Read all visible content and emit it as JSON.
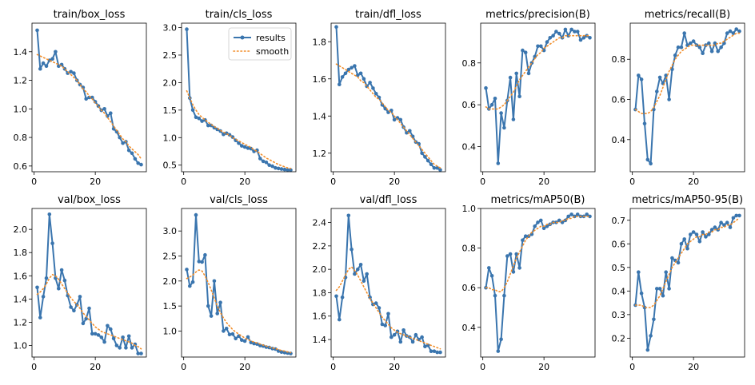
{
  "figure": {
    "colors": {
      "results": "#3a75ae",
      "smooth": "#f28e2b",
      "axis": "#000000",
      "background": "#ffffff"
    },
    "legend": {
      "results": "results",
      "smooth": "smooth",
      "placement": "upper right of train/cls_loss"
    }
  },
  "chart_data": [
    {
      "type": "line",
      "title": "train/box_loss",
      "xlim": [
        -0.7,
        36.7
      ],
      "ylim": [
        0.56,
        1.6
      ],
      "xticks": [
        0,
        20
      ],
      "yticks": [
        0.6,
        0.8,
        1.0,
        1.2,
        1.4
      ],
      "ytick_labels": [
        "0.6",
        "0.8",
        "1.0",
        "1.2",
        "1.4"
      ],
      "legend": false,
      "series": [
        {
          "role": "results",
          "values": [
            1.55,
            1.28,
            1.32,
            1.3,
            1.34,
            1.35,
            1.4,
            1.3,
            1.31,
            1.28,
            1.25,
            1.26,
            1.25,
            1.2,
            1.17,
            1.15,
            1.07,
            1.08,
            1.08,
            1.05,
            1.02,
            0.99,
            1.0,
            0.95,
            0.97,
            0.86,
            0.84,
            0.8,
            0.76,
            0.77,
            0.71,
            0.69,
            0.65,
            0.62,
            0.61
          ]
        },
        {
          "role": "smooth",
          "values": [
            1.38,
            1.37,
            1.36,
            1.35,
            1.34,
            1.33,
            1.32,
            1.31,
            1.3,
            1.28,
            1.26,
            1.24,
            1.22,
            1.2,
            1.17,
            1.14,
            1.12,
            1.09,
            1.07,
            1.04,
            1.02,
            0.99,
            0.97,
            0.94,
            0.91,
            0.88,
            0.85,
            0.82,
            0.79,
            0.77,
            0.74,
            0.72,
            0.7,
            0.68,
            0.65
          ]
        }
      ]
    },
    {
      "type": "line",
      "title": "train/cls_loss",
      "xlim": [
        -0.7,
        36.7
      ],
      "ylim": [
        0.38,
        3.08
      ],
      "xticks": [
        0,
        20
      ],
      "yticks": [
        0.5,
        1.0,
        1.5,
        2.0,
        2.5,
        3.0
      ],
      "ytick_labels": [
        "0.5",
        "1.0",
        "1.5",
        "2.0",
        "2.5",
        "3.0"
      ],
      "legend": true,
      "series": [
        {
          "role": "results",
          "values": [
            2.97,
            1.72,
            1.5,
            1.37,
            1.35,
            1.3,
            1.32,
            1.22,
            1.22,
            1.18,
            1.15,
            1.12,
            1.06,
            1.08,
            1.05,
            1.01,
            0.95,
            0.9,
            0.85,
            0.83,
            0.81,
            0.8,
            0.75,
            0.77,
            0.62,
            0.57,
            0.55,
            0.5,
            0.48,
            0.45,
            0.44,
            0.43,
            0.42,
            0.41,
            0.41
          ]
        },
        {
          "role": "smooth",
          "values": [
            1.85,
            1.72,
            1.6,
            1.5,
            1.42,
            1.37,
            1.32,
            1.28,
            1.24,
            1.2,
            1.17,
            1.13,
            1.1,
            1.07,
            1.04,
            1.0,
            0.97,
            0.94,
            0.91,
            0.88,
            0.85,
            0.82,
            0.78,
            0.75,
            0.71,
            0.67,
            0.63,
            0.6,
            0.57,
            0.54,
            0.51,
            0.49,
            0.47,
            0.45,
            0.44
          ]
        }
      ]
    },
    {
      "type": "line",
      "title": "train/dfl_loss",
      "xlim": [
        -0.7,
        36.7
      ],
      "ylim": [
        1.1,
        1.9
      ],
      "xticks": [
        0,
        20
      ],
      "yticks": [
        1.2,
        1.4,
        1.6,
        1.8
      ],
      "ytick_labels": [
        "1.2",
        "1.4",
        "1.6",
        "1.8"
      ],
      "legend": false,
      "series": [
        {
          "role": "results",
          "values": [
            1.88,
            1.57,
            1.61,
            1.63,
            1.65,
            1.66,
            1.67,
            1.62,
            1.63,
            1.6,
            1.56,
            1.58,
            1.55,
            1.52,
            1.5,
            1.46,
            1.44,
            1.42,
            1.43,
            1.38,
            1.39,
            1.38,
            1.34,
            1.31,
            1.32,
            1.29,
            1.26,
            1.25,
            1.2,
            1.18,
            1.16,
            1.14,
            1.12,
            1.12,
            1.11
          ]
        },
        {
          "role": "smooth",
          "values": [
            1.68,
            1.67,
            1.66,
            1.65,
            1.64,
            1.63,
            1.62,
            1.61,
            1.59,
            1.58,
            1.56,
            1.54,
            1.52,
            1.5,
            1.49,
            1.47,
            1.45,
            1.43,
            1.42,
            1.4,
            1.38,
            1.36,
            1.34,
            1.32,
            1.3,
            1.28,
            1.26,
            1.24,
            1.22,
            1.2,
            1.18,
            1.16,
            1.14,
            1.13,
            1.12
          ]
        }
      ]
    },
    {
      "type": "line",
      "title": "metrics/precision(B)",
      "xlim": [
        -0.7,
        36.7
      ],
      "ylim": [
        0.28,
        0.99
      ],
      "xticks": [
        0,
        20
      ],
      "yticks": [
        0.4,
        0.6,
        0.8
      ],
      "ytick_labels": [
        "0.4",
        "0.6",
        "0.8"
      ],
      "legend": false,
      "series": [
        {
          "role": "results",
          "values": [
            0.68,
            0.58,
            0.6,
            0.63,
            0.32,
            0.56,
            0.49,
            0.62,
            0.73,
            0.53,
            0.75,
            0.64,
            0.86,
            0.85,
            0.75,
            0.8,
            0.83,
            0.88,
            0.88,
            0.86,
            0.9,
            0.92,
            0.93,
            0.95,
            0.94,
            0.92,
            0.96,
            0.93,
            0.96,
            0.95,
            0.95,
            0.91,
            0.92,
            0.93,
            0.92
          ]
        },
        {
          "role": "smooth",
          "values": [
            0.59,
            0.58,
            0.58,
            0.58,
            0.58,
            0.59,
            0.6,
            0.62,
            0.64,
            0.66,
            0.69,
            0.72,
            0.74,
            0.76,
            0.78,
            0.8,
            0.82,
            0.84,
            0.85,
            0.87,
            0.88,
            0.89,
            0.9,
            0.91,
            0.92,
            0.92,
            0.93,
            0.93,
            0.93,
            0.93,
            0.93,
            0.93,
            0.93,
            0.93,
            0.93
          ]
        }
      ]
    },
    {
      "type": "line",
      "title": "metrics/recall(B)",
      "xlim": [
        -0.7,
        36.7
      ],
      "ylim": [
        0.24,
        0.98
      ],
      "xticks": [
        0,
        20
      ],
      "yticks": [
        0.4,
        0.6,
        0.8
      ],
      "ytick_labels": [
        "0.4",
        "0.6",
        "0.8"
      ],
      "legend": false,
      "series": [
        {
          "role": "results",
          "values": [
            0.55,
            0.72,
            0.7,
            0.48,
            0.3,
            0.28,
            0.55,
            0.64,
            0.71,
            0.68,
            0.72,
            0.6,
            0.75,
            0.82,
            0.86,
            0.86,
            0.93,
            0.87,
            0.88,
            0.89,
            0.87,
            0.86,
            0.83,
            0.87,
            0.88,
            0.84,
            0.88,
            0.84,
            0.86,
            0.88,
            0.93,
            0.94,
            0.93,
            0.95,
            0.94
          ]
        },
        {
          "role": "smooth",
          "values": [
            0.55,
            0.54,
            0.53,
            0.53,
            0.53,
            0.54,
            0.56,
            0.59,
            0.62,
            0.66,
            0.7,
            0.74,
            0.77,
            0.8,
            0.82,
            0.84,
            0.85,
            0.86,
            0.87,
            0.87,
            0.87,
            0.87,
            0.87,
            0.87,
            0.87,
            0.87,
            0.87,
            0.88,
            0.88,
            0.89,
            0.9,
            0.91,
            0.92,
            0.93,
            0.93
          ]
        }
      ]
    },
    {
      "type": "line",
      "title": "val/box_loss",
      "xlim": [
        -0.7,
        36.7
      ],
      "ylim": [
        0.9,
        2.18
      ],
      "xticks": [
        0,
        20
      ],
      "yticks": [
        1.0,
        1.2,
        1.4,
        1.6,
        1.8,
        2.0
      ],
      "ytick_labels": [
        "1.0",
        "1.2",
        "1.4",
        "1.6",
        "1.8",
        "2.0"
      ],
      "legend": false,
      "series": [
        {
          "role": "results",
          "values": [
            1.5,
            1.24,
            1.42,
            1.58,
            2.13,
            1.88,
            1.58,
            1.49,
            1.65,
            1.56,
            1.43,
            1.33,
            1.3,
            1.35,
            1.42,
            1.19,
            1.23,
            1.32,
            1.1,
            1.1,
            1.09,
            1.07,
            1.03,
            1.17,
            1.14,
            1.06,
            1.0,
            0.98,
            1.07,
            0.98,
            1.08,
            0.98,
            1.01,
            0.93,
            0.93
          ]
        },
        {
          "role": "smooth",
          "values": [
            1.44,
            1.46,
            1.49,
            1.53,
            1.58,
            1.61,
            1.6,
            1.57,
            1.53,
            1.49,
            1.45,
            1.41,
            1.38,
            1.35,
            1.32,
            1.28,
            1.25,
            1.22,
            1.19,
            1.16,
            1.14,
            1.12,
            1.11,
            1.1,
            1.09,
            1.08,
            1.07,
            1.06,
            1.05,
            1.04,
            1.03,
            1.02,
            1.0,
            0.99,
            0.97
          ]
        }
      ]
    },
    {
      "type": "line",
      "title": "val/cls_loss",
      "xlim": [
        -0.7,
        36.7
      ],
      "ylim": [
        0.48,
        3.45
      ],
      "xticks": [
        0,
        20
      ],
      "yticks": [
        1.0,
        1.5,
        2.0,
        2.5,
        3.0
      ],
      "ytick_labels": [
        "1.0",
        "1.5",
        "2.0",
        "2.5",
        "3.0"
      ],
      "legend": false,
      "series": [
        {
          "role": "results",
          "values": [
            2.23,
            1.9,
            1.98,
            3.32,
            2.39,
            2.38,
            2.52,
            1.5,
            1.3,
            2.0,
            1.35,
            1.57,
            1.0,
            1.05,
            0.93,
            0.94,
            0.85,
            0.9,
            0.82,
            0.8,
            0.88,
            0.77,
            0.75,
            0.74,
            0.71,
            0.7,
            0.68,
            0.67,
            0.65,
            0.64,
            0.6,
            0.58,
            0.57,
            0.56,
            0.55
          ]
        },
        {
          "role": "smooth",
          "values": [
            2.05,
            2.08,
            2.12,
            2.18,
            2.22,
            2.2,
            2.1,
            1.97,
            1.82,
            1.66,
            1.5,
            1.37,
            1.26,
            1.17,
            1.1,
            1.03,
            0.98,
            0.94,
            0.9,
            0.86,
            0.83,
            0.8,
            0.78,
            0.76,
            0.74,
            0.72,
            0.7,
            0.68,
            0.66,
            0.65,
            0.63,
            0.61,
            0.6,
            0.58,
            0.57
          ]
        }
      ]
    },
    {
      "type": "line",
      "title": "val/dfl_loss",
      "xlim": [
        -0.7,
        36.7
      ],
      "ylim": [
        1.25,
        2.52
      ],
      "xticks": [
        0,
        20
      ],
      "yticks": [
        1.4,
        1.6,
        1.8,
        2.0,
        2.2,
        2.4
      ],
      "ytick_labels": [
        "1.4",
        "1.6",
        "1.8",
        "2.0",
        "2.2",
        "2.4"
      ],
      "legend": false,
      "series": [
        {
          "role": "results",
          "values": [
            1.77,
            1.57,
            1.76,
            1.93,
            2.46,
            2.17,
            1.96,
            2.0,
            2.04,
            1.9,
            1.96,
            1.76,
            1.7,
            1.71,
            1.67,
            1.53,
            1.52,
            1.62,
            1.42,
            1.44,
            1.47,
            1.38,
            1.48,
            1.43,
            1.42,
            1.38,
            1.44,
            1.4,
            1.42,
            1.34,
            1.35,
            1.3,
            1.3,
            1.29,
            1.29
          ]
        },
        {
          "role": "smooth",
          "values": [
            1.82,
            1.85,
            1.9,
            1.95,
            2.0,
            2.02,
            1.99,
            1.95,
            1.9,
            1.85,
            1.8,
            1.75,
            1.71,
            1.67,
            1.63,
            1.59,
            1.56,
            1.53,
            1.5,
            1.48,
            1.46,
            1.45,
            1.44,
            1.43,
            1.42,
            1.41,
            1.4,
            1.39,
            1.38,
            1.37,
            1.36,
            1.35,
            1.34,
            1.33,
            1.32
          ]
        }
      ]
    },
    {
      "type": "line",
      "title": "metrics/mAP50(B)",
      "xlim": [
        -0.7,
        36.7
      ],
      "ylim": [
        0.25,
        1.0
      ],
      "xticks": [
        0,
        20
      ],
      "yticks": [
        0.4,
        0.6,
        0.8,
        1.0
      ],
      "ytick_labels": [
        "0.4",
        "0.6",
        "0.8",
        "1.0"
      ],
      "legend": false,
      "series": [
        {
          "role": "results",
          "values": [
            0.6,
            0.7,
            0.66,
            0.56,
            0.28,
            0.34,
            0.56,
            0.76,
            0.77,
            0.68,
            0.77,
            0.7,
            0.84,
            0.86,
            0.86,
            0.87,
            0.91,
            0.93,
            0.94,
            0.9,
            0.91,
            0.92,
            0.93,
            0.93,
            0.94,
            0.93,
            0.94,
            0.96,
            0.97,
            0.96,
            0.97,
            0.96,
            0.96,
            0.97,
            0.96
          ]
        },
        {
          "role": "smooth",
          "values": [
            0.6,
            0.6,
            0.59,
            0.59,
            0.58,
            0.58,
            0.6,
            0.63,
            0.67,
            0.71,
            0.75,
            0.78,
            0.81,
            0.84,
            0.86,
            0.88,
            0.89,
            0.9,
            0.91,
            0.91,
            0.92,
            0.92,
            0.93,
            0.93,
            0.93,
            0.94,
            0.94,
            0.95,
            0.95,
            0.96,
            0.96,
            0.96,
            0.96,
            0.96,
            0.96
          ]
        }
      ]
    },
    {
      "type": "line",
      "title": "metrics/mAP50-95(B)",
      "xlim": [
        -0.7,
        36.7
      ],
      "ylim": [
        0.12,
        0.75
      ],
      "xticks": [
        0,
        20
      ],
      "yticks": [
        0.2,
        0.3,
        0.4,
        0.5,
        0.6,
        0.7
      ],
      "ytick_labels": [
        "0.2",
        "0.3",
        "0.4",
        "0.5",
        "0.6",
        "0.7"
      ],
      "legend": false,
      "series": [
        {
          "role": "results",
          "values": [
            0.34,
            0.48,
            0.39,
            0.33,
            0.15,
            0.21,
            0.28,
            0.41,
            0.41,
            0.38,
            0.48,
            0.41,
            0.54,
            0.53,
            0.52,
            0.6,
            0.62,
            0.58,
            0.64,
            0.65,
            0.64,
            0.61,
            0.65,
            0.63,
            0.64,
            0.66,
            0.67,
            0.66,
            0.69,
            0.68,
            0.69,
            0.67,
            0.71,
            0.72,
            0.72
          ]
        },
        {
          "role": "smooth",
          "values": [
            0.34,
            0.34,
            0.34,
            0.33,
            0.33,
            0.33,
            0.34,
            0.36,
            0.38,
            0.41,
            0.44,
            0.47,
            0.5,
            0.52,
            0.54,
            0.56,
            0.58,
            0.6,
            0.61,
            0.62,
            0.63,
            0.63,
            0.64,
            0.64,
            0.65,
            0.65,
            0.66,
            0.66,
            0.67,
            0.67,
            0.68,
            0.68,
            0.69,
            0.7,
            0.71
          ]
        }
      ]
    }
  ]
}
